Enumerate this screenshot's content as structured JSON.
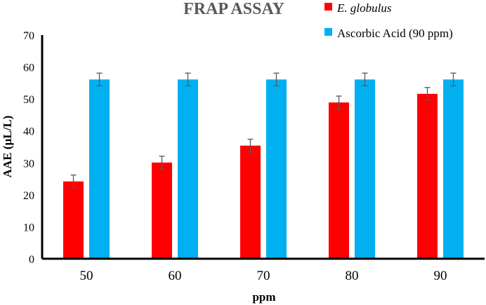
{
  "chart_data": {
    "type": "bar",
    "title": "FRAP ASSAY",
    "xlabel": "ppm",
    "ylabel": "AAE (µL/L)",
    "categories": [
      "50",
      "60",
      "70",
      "80",
      "90"
    ],
    "series": [
      {
        "name": "E. globulus",
        "color": "#ff0000",
        "values": [
          24.2,
          30.1,
          35.4,
          48.9,
          51.6
        ],
        "error": [
          2,
          2,
          2,
          2,
          2
        ]
      },
      {
        "name": "Ascorbic Acid (90 ppm)",
        "color": "#00b0f0",
        "values": [
          56.1,
          56.1,
          56.1,
          56.1,
          56.1
        ],
        "error": [
          2,
          2,
          2,
          2,
          2
        ]
      }
    ],
    "ylim": [
      0,
      70
    ],
    "yticks": [
      0,
      10,
      20,
      30,
      40,
      50,
      60,
      70
    ],
    "grid": false,
    "legend_position": "top-right",
    "error_bars": true
  }
}
